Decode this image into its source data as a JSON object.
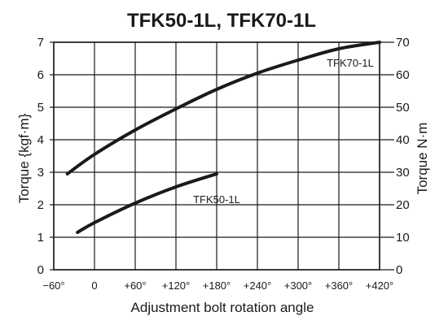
{
  "chart_data": {
    "type": "line",
    "title": "TFK50-1L, TFK70-1L",
    "xlabel": "Adjustment bolt rotation angle",
    "ylabel": "Torque {kgf·m}",
    "y2label": "Torque N·m",
    "xlim": [
      -60,
      420
    ],
    "ylim": [
      0,
      7
    ],
    "y2lim": [
      0,
      70
    ],
    "x_ticks": [
      {
        "value": -60,
        "label": "−60°"
      },
      {
        "value": 0,
        "label": "0"
      },
      {
        "value": 60,
        "label": "+60°"
      },
      {
        "value": 120,
        "label": "+120°"
      },
      {
        "value": 180,
        "label": "+180°"
      },
      {
        "value": 240,
        "label": "+240°"
      },
      {
        "value": 300,
        "label": "+300°"
      },
      {
        "value": 360,
        "label": "+360°"
      },
      {
        "value": 420,
        "label": "+420°"
      }
    ],
    "y_ticks": [
      {
        "value": 0,
        "label": "0"
      },
      {
        "value": 1,
        "label": "1"
      },
      {
        "value": 2,
        "label": "2"
      },
      {
        "value": 3,
        "label": "3"
      },
      {
        "value": 4,
        "label": "4"
      },
      {
        "value": 5,
        "label": "5"
      },
      {
        "value": 6,
        "label": "6"
      },
      {
        "value": 7,
        "label": "7"
      }
    ],
    "y2_ticks": [
      {
        "value": 0,
        "label": "0"
      },
      {
        "value": 10,
        "label": "10"
      },
      {
        "value": 20,
        "label": "20"
      },
      {
        "value": 30,
        "label": "30"
      },
      {
        "value": 40,
        "label": "40"
      },
      {
        "value": 50,
        "label": "50"
      },
      {
        "value": 60,
        "label": "60"
      },
      {
        "value": 70,
        "label": "70"
      }
    ],
    "grid": true,
    "series": [
      {
        "name": "TFK70-1L",
        "x": [
          -40,
          0,
          60,
          120,
          180,
          240,
          300,
          360,
          420
        ],
        "y": [
          2.95,
          3.55,
          4.3,
          4.95,
          5.55,
          6.05,
          6.45,
          6.8,
          7.0
        ]
      },
      {
        "name": "TFK50-1L",
        "x": [
          -25,
          0,
          60,
          120,
          180
        ],
        "y": [
          1.15,
          1.45,
          2.05,
          2.55,
          2.95
        ]
      }
    ],
    "colors": {
      "line": "#1a1a1a",
      "grid": "#1a1a1a",
      "text": "#1a1a1a"
    }
  }
}
